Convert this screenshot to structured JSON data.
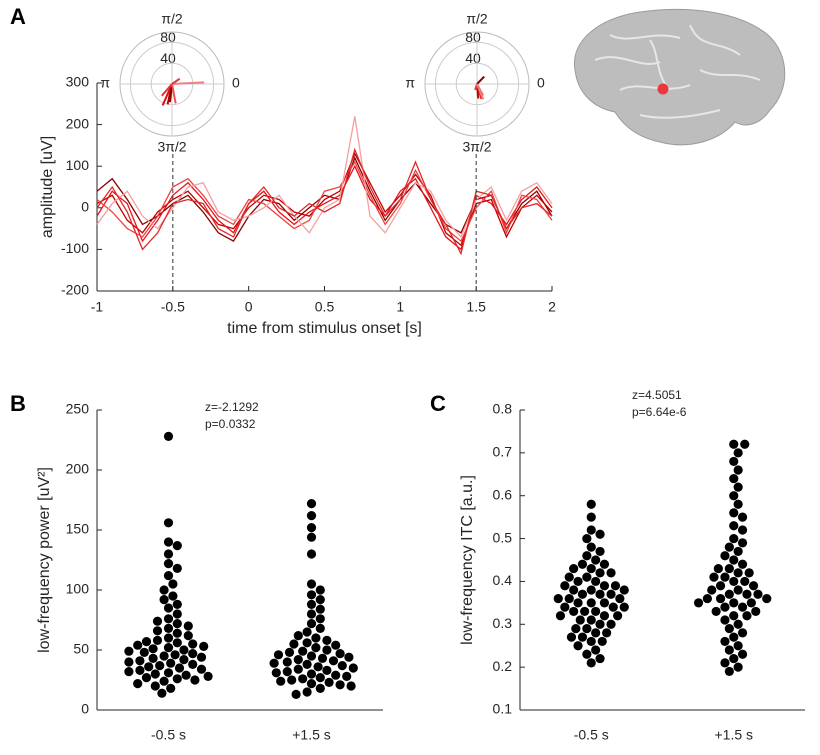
{
  "chart_data": [
    {
      "type": "line",
      "panel": "A",
      "xlabel": "time from stimulus onset [s]",
      "ylabel": "amplitude [uV]",
      "x": [
        -1,
        -0.9,
        -0.8,
        -0.7,
        -0.6,
        -0.5,
        -0.4,
        -0.3,
        -0.2,
        -0.1,
        0,
        0.1,
        0.2,
        0.3,
        0.4,
        0.5,
        0.6,
        0.7,
        0.8,
        0.9,
        1,
        1.1,
        1.2,
        1.3,
        1.4,
        1.5,
        1.6,
        1.7,
        1.8,
        1.9,
        2
      ],
      "series": [
        {
          "color": "#8b0000",
          "values": [
            40,
            70,
            20,
            -40,
            -20,
            10,
            30,
            -10,
            -60,
            -80,
            -20,
            20,
            10,
            -30,
            0,
            30,
            20,
            120,
            40,
            -30,
            20,
            60,
            10,
            -40,
            -60,
            20,
            30,
            -50,
            10,
            40,
            -20
          ]
        },
        {
          "color": "#c00000",
          "values": [
            10,
            30,
            -30,
            -60,
            -10,
            20,
            40,
            0,
            -40,
            -50,
            0,
            30,
            20,
            -10,
            -20,
            20,
            40,
            130,
            60,
            -10,
            30,
            80,
            30,
            -60,
            -90,
            10,
            20,
            -70,
            0,
            30,
            -10
          ]
        },
        {
          "color": "#e8141a",
          "values": [
            -20,
            40,
            10,
            -80,
            -30,
            30,
            60,
            20,
            -30,
            -60,
            10,
            40,
            -10,
            -40,
            -10,
            10,
            30,
            100,
            20,
            -20,
            40,
            70,
            0,
            -70,
            -100,
            30,
            10,
            -40,
            20,
            50,
            0
          ]
        },
        {
          "color": "#f04040",
          "values": [
            20,
            -10,
            -50,
            -70,
            -20,
            50,
            70,
            30,
            -20,
            -40,
            20,
            10,
            -20,
            -50,
            -30,
            40,
            50,
            110,
            30,
            -40,
            10,
            90,
            20,
            -50,
            -80,
            0,
            40,
            -60,
            30,
            20,
            -30
          ]
        },
        {
          "color": "#f5a0a0",
          "values": [
            -40,
            10,
            40,
            -20,
            -50,
            0,
            50,
            60,
            -10,
            -30,
            -20,
            0,
            30,
            -20,
            -60,
            0,
            20,
            220,
            -20,
            -60,
            0,
            60,
            40,
            -30,
            -70,
            20,
            50,
            -30,
            40,
            60,
            10
          ]
        },
        {
          "color": "#e02828",
          "values": [
            0,
            50,
            -10,
            -100,
            -60,
            10,
            20,
            10,
            -50,
            -70,
            10,
            50,
            0,
            -20,
            10,
            -10,
            10,
            140,
            50,
            -20,
            20,
            110,
            20,
            -40,
            -110,
            40,
            30,
            -50,
            0,
            10,
            -20
          ]
        }
      ],
      "xlim": [
        -1,
        2
      ],
      "xticks": [
        -1,
        -0.5,
        0,
        0.5,
        1,
        1.5,
        2
      ],
      "ylim": [
        -200,
        300
      ],
      "yticks": [
        -200,
        -100,
        0,
        100,
        200,
        300
      ],
      "vlines": [
        -0.5,
        1.5
      ]
    },
    {
      "type": "polar",
      "rlim": [
        0,
        100
      ],
      "rticks": [
        40,
        80
      ],
      "angle_labels": [
        "π/2",
        "π",
        "0",
        "3π/2"
      ],
      "theta": [
        4.5,
        4.3,
        4.6,
        4.0,
        0.05,
        0.6,
        4.9
      ],
      "r": [
        40,
        45,
        35,
        30,
        62,
        18,
        38
      ],
      "colors": [
        "#c00000",
        "#e01010",
        "#8b0000",
        "#e83030",
        "#f08080",
        "#d04040",
        "#f05050"
      ]
    },
    {
      "type": "polar",
      "rlim": [
        0,
        100
      ],
      "rticks": [
        40,
        80
      ],
      "angle_labels": [
        "π/2",
        "π",
        "0",
        "3π/2"
      ],
      "theta": [
        5.0,
        5.2,
        0.8,
        4.8,
        4.4,
        5.1
      ],
      "r": [
        30,
        25,
        20,
        28,
        12,
        32
      ],
      "colors": [
        "#e02020",
        "#f06060",
        "#8b0000",
        "#c00000",
        "#e04040",
        "#f08080"
      ]
    },
    {
      "type": "swarm",
      "panel": "B",
      "ylabel": "low-frequency power [uV²]",
      "annotations": [
        "z=-2.1292",
        "p=0.0332"
      ],
      "categories": [
        "-0.5 s",
        "+1.5 s"
      ],
      "color": "#000000",
      "values": [
        [
          228,
          156,
          140,
          137,
          130,
          122,
          118,
          112,
          105,
          100,
          95,
          92,
          88,
          85,
          80,
          76,
          74,
          72,
          70,
          68,
          66,
          64,
          62,
          60,
          58,
          57,
          56,
          55,
          54,
          53,
          52,
          51,
          50,
          49,
          48,
          47,
          46,
          45,
          44,
          43,
          42,
          41,
          40,
          39,
          38,
          37,
          36,
          35,
          34,
          33,
          32,
          31,
          30,
          29,
          28,
          27,
          26,
          25,
          24,
          22,
          20,
          18,
          14
        ],
        [
          172,
          162,
          152,
          144,
          130,
          105,
          100,
          96,
          92,
          88,
          84,
          80,
          76,
          72,
          68,
          65,
          62,
          60,
          58,
          56,
          55,
          54,
          52,
          50,
          49,
          48,
          47,
          46,
          45,
          44,
          43,
          42,
          41,
          40,
          39,
          38,
          37,
          36,
          35,
          34,
          33,
          32,
          31,
          30,
          29,
          28,
          27,
          26,
          25,
          24,
          23,
          22,
          21,
          20,
          18,
          15,
          13
        ]
      ],
      "ylim": [
        0,
        250
      ],
      "yticks": [
        0,
        50,
        100,
        150,
        200,
        250
      ]
    },
    {
      "type": "swarm",
      "panel": "C",
      "ylabel": "low-frequency ITC [a.u.]",
      "annotations": [
        "z=4.5051",
        "p=6.64e-6"
      ],
      "categories": [
        "-0.5 s",
        "+1.5 s"
      ],
      "color": "#000000",
      "values": [
        [
          0.58,
          0.55,
          0.52,
          0.51,
          0.5,
          0.48,
          0.47,
          0.46,
          0.45,
          0.44,
          0.44,
          0.43,
          0.43,
          0.42,
          0.42,
          0.41,
          0.41,
          0.4,
          0.4,
          0.39,
          0.39,
          0.39,
          0.38,
          0.38,
          0.38,
          0.37,
          0.37,
          0.37,
          0.36,
          0.36,
          0.36,
          0.35,
          0.35,
          0.35,
          0.34,
          0.34,
          0.34,
          0.33,
          0.33,
          0.33,
          0.32,
          0.32,
          0.32,
          0.31,
          0.31,
          0.3,
          0.3,
          0.29,
          0.29,
          0.28,
          0.28,
          0.27,
          0.27,
          0.26,
          0.26,
          0.25,
          0.24,
          0.23,
          0.22,
          0.21
        ],
        [
          0.72,
          0.72,
          0.7,
          0.68,
          0.66,
          0.64,
          0.62,
          0.6,
          0.58,
          0.56,
          0.55,
          0.53,
          0.52,
          0.5,
          0.49,
          0.48,
          0.47,
          0.46,
          0.45,
          0.44,
          0.43,
          0.43,
          0.42,
          0.42,
          0.41,
          0.41,
          0.4,
          0.4,
          0.39,
          0.39,
          0.38,
          0.38,
          0.37,
          0.37,
          0.37,
          0.36,
          0.36,
          0.36,
          0.35,
          0.35,
          0.35,
          0.34,
          0.34,
          0.33,
          0.33,
          0.32,
          0.32,
          0.31,
          0.3,
          0.29,
          0.28,
          0.27,
          0.26,
          0.25,
          0.24,
          0.23,
          0.22,
          0.21,
          0.2,
          0.19
        ]
      ],
      "ylim": [
        0.1,
        0.8
      ],
      "yticks": [
        0.1,
        0.2,
        0.3,
        0.4,
        0.5,
        0.6,
        0.7,
        0.8
      ]
    }
  ]
}
